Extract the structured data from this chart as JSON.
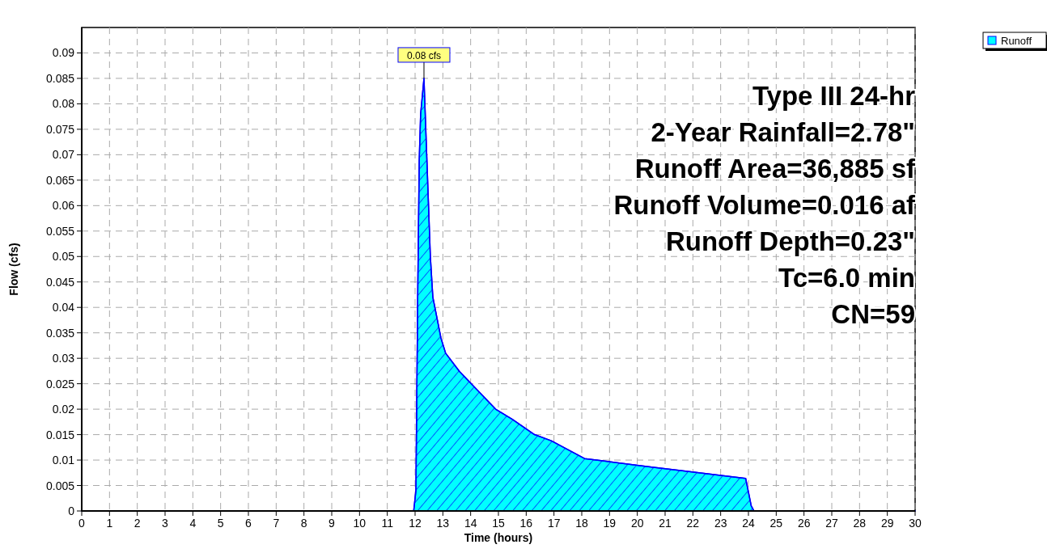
{
  "chart_data": {
    "type": "area",
    "xlabel": "Time  (hours)",
    "ylabel": "Flow  (cfs)",
    "series": [
      {
        "name": "Runoff",
        "color": "#00ffff",
        "x": [
          0,
          11.95,
          12.03,
          12.1,
          12.15,
          12.2,
          12.32,
          12.55,
          12.64,
          12.93,
          13.1,
          13.6,
          14.2,
          14.9,
          15.5,
          16.3,
          16.9,
          18.1,
          18.7,
          20.4,
          21.8,
          23.9,
          24.1,
          24.2,
          30
        ],
        "values": [
          0,
          0,
          0.004,
          0.045,
          0.069,
          0.078,
          0.085,
          0.05,
          0.042,
          0.034,
          0.031,
          0.0274,
          0.024,
          0.02,
          0.018,
          0.015,
          0.0138,
          0.0103,
          0.0099,
          0.0087,
          0.0078,
          0.0064,
          0.001,
          0,
          0
        ]
      }
    ],
    "xlim": [
      0,
      30
    ],
    "xticks": [
      0,
      1,
      2,
      3,
      4,
      5,
      6,
      7,
      8,
      9,
      10,
      11,
      12,
      13,
      14,
      15,
      16,
      17,
      18,
      19,
      20,
      21,
      22,
      23,
      24,
      25,
      26,
      27,
      28,
      29,
      30
    ],
    "ylim": [
      0,
      0.095
    ],
    "yticks": [
      0,
      0.005,
      0.01,
      0.015,
      0.02,
      0.025,
      0.03,
      0.035,
      0.04,
      0.045,
      0.05,
      0.055,
      0.06,
      0.065,
      0.07,
      0.075,
      0.08,
      0.085,
      0.09
    ],
    "grid": true,
    "legend": "top right",
    "annotations": [
      {
        "text": "0.08 cfs",
        "x": 12.32,
        "y": 0.085
      },
      "Type III 24-hr",
      "2-Year Rainfall=2.78\"",
      "Runoff Area=36,885 sf",
      "Runoff Volume=0.016 af",
      "Runoff Depth=0.23\"",
      "Tc=6.0 min",
      "CN=59"
    ]
  }
}
